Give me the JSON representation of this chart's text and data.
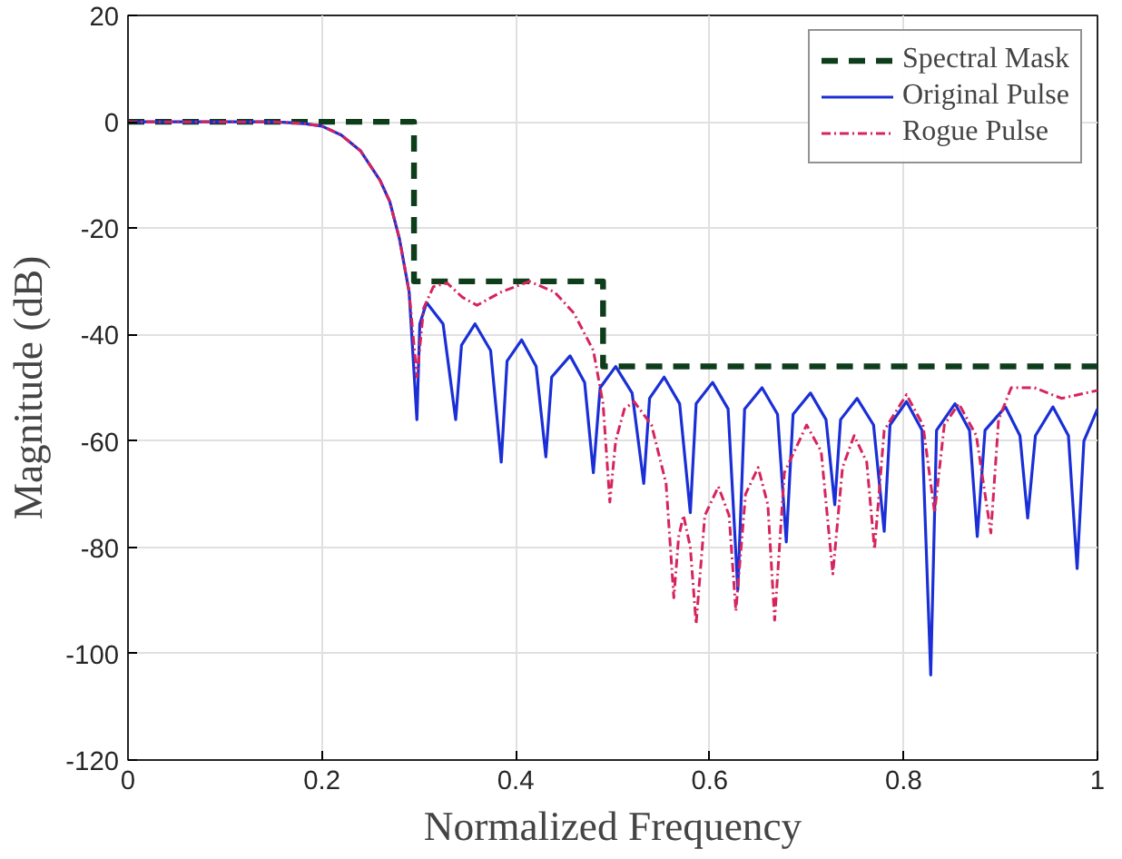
{
  "chart_data": {
    "type": "line",
    "xlabel": "Normalized Frequency",
    "ylabel": "Magnitude (dB)",
    "xlim": [
      0,
      1
    ],
    "xticks": [
      0,
      0.2,
      0.4,
      0.6,
      0.8,
      1
    ],
    "ylim": [
      -120,
      20
    ],
    "yticks": [
      -120,
      -100,
      -80,
      -60,
      -40,
      -20,
      0,
      20
    ],
    "grid": true,
    "legend": "top right",
    "series": [
      {
        "name": "Spectral Mask",
        "color": "#0e3d1c",
        "line_style": "dashed",
        "x": [
          0,
          0.295,
          0.295,
          0.49,
          0.49,
          1
        ],
        "values": [
          0,
          0,
          -30,
          -30,
          -46,
          -46
        ]
      },
      {
        "name": "Original Pulse",
        "color": "#1a2fd6",
        "line_style": "solid",
        "x": [
          0,
          0.05,
          0.1,
          0.15,
          0.18,
          0.2,
          0.22,
          0.24,
          0.26,
          0.27,
          0.28,
          0.29,
          0.298,
          0.301,
          0.308,
          0.325,
          0.338,
          0.344,
          0.358,
          0.374,
          0.385,
          0.391,
          0.406,
          0.421,
          0.431,
          0.437,
          0.456,
          0.471,
          0.48,
          0.487,
          0.503,
          0.52,
          0.532,
          0.538,
          0.553,
          0.569,
          0.58,
          0.586,
          0.603,
          0.619,
          0.629,
          0.636,
          0.654,
          0.67,
          0.679,
          0.686,
          0.704,
          0.72,
          0.729,
          0.735,
          0.752,
          0.769,
          0.78,
          0.786,
          0.803,
          0.819,
          0.828,
          0.834,
          0.853,
          0.868,
          0.876,
          0.884,
          0.905,
          0.92,
          0.928,
          0.936,
          0.954,
          0.97,
          0.979,
          0.986,
          1.0
        ],
        "values": [
          0,
          0,
          0,
          0,
          -0.3,
          -0.8,
          -2.5,
          -5.5,
          -11,
          -15,
          -22,
          -32,
          -56,
          -38,
          -34,
          -38,
          -56,
          -42,
          -38,
          -43,
          -64,
          -45,
          -41,
          -46,
          -63,
          -48,
          -44,
          -49,
          -66,
          -50,
          -46,
          -51,
          -68,
          -52,
          -48,
          -53,
          -73.5,
          -53,
          -49,
          -54,
          -88,
          -54,
          -50,
          -55,
          -79,
          -55,
          -51,
          -56,
          -72,
          -56,
          -52,
          -57,
          -77,
          -57,
          -52.6,
          -58,
          -104,
          -58,
          -53,
          -58,
          -78,
          -58,
          -53.6,
          -59,
          -74.5,
          -59,
          -53.6,
          -59,
          -84,
          -60,
          -54
        ]
      },
      {
        "name": "Rogue Pulse",
        "color": "#d6245c",
        "line_style": "dotted",
        "x": [
          0,
          0.05,
          0.1,
          0.15,
          0.18,
          0.2,
          0.22,
          0.24,
          0.26,
          0.27,
          0.28,
          0.29,
          0.298,
          0.305,
          0.315,
          0.329,
          0.345,
          0.36,
          0.385,
          0.414,
          0.44,
          0.46,
          0.48,
          0.49,
          0.497,
          0.503,
          0.512,
          0.522,
          0.54,
          0.555,
          0.563,
          0.568,
          0.573,
          0.58,
          0.586,
          0.595,
          0.609,
          0.62,
          0.627,
          0.637,
          0.65,
          0.66,
          0.667,
          0.677,
          0.7,
          0.715,
          0.727,
          0.737,
          0.749,
          0.762,
          0.77,
          0.78,
          0.803,
          0.82,
          0.832,
          0.842,
          0.857,
          0.875,
          0.89,
          0.898,
          0.911,
          0.935,
          0.963,
          1.0
        ],
        "values": [
          0,
          0,
          0,
          0,
          -0.3,
          -0.8,
          -2.5,
          -5.5,
          -11,
          -15,
          -22,
          -32,
          -48,
          -35,
          -31,
          -30.3,
          -33,
          -34.5,
          -32,
          -30,
          -32,
          -36,
          -43,
          -53,
          -71.5,
          -60,
          -54,
          -52.6,
          -57,
          -68,
          -89.5,
          -78,
          -74,
          -80,
          -94.4,
          -74,
          -68.6,
          -74,
          -92,
          -70,
          -65,
          -72,
          -93.7,
          -66,
          -57,
          -62,
          -85,
          -65,
          -59,
          -64,
          -80.4,
          -58,
          -51.3,
          -57,
          -73.5,
          -57,
          -53,
          -59,
          -77.3,
          -56,
          -50,
          -50,
          -52,
          -50.5
        ]
      }
    ]
  }
}
